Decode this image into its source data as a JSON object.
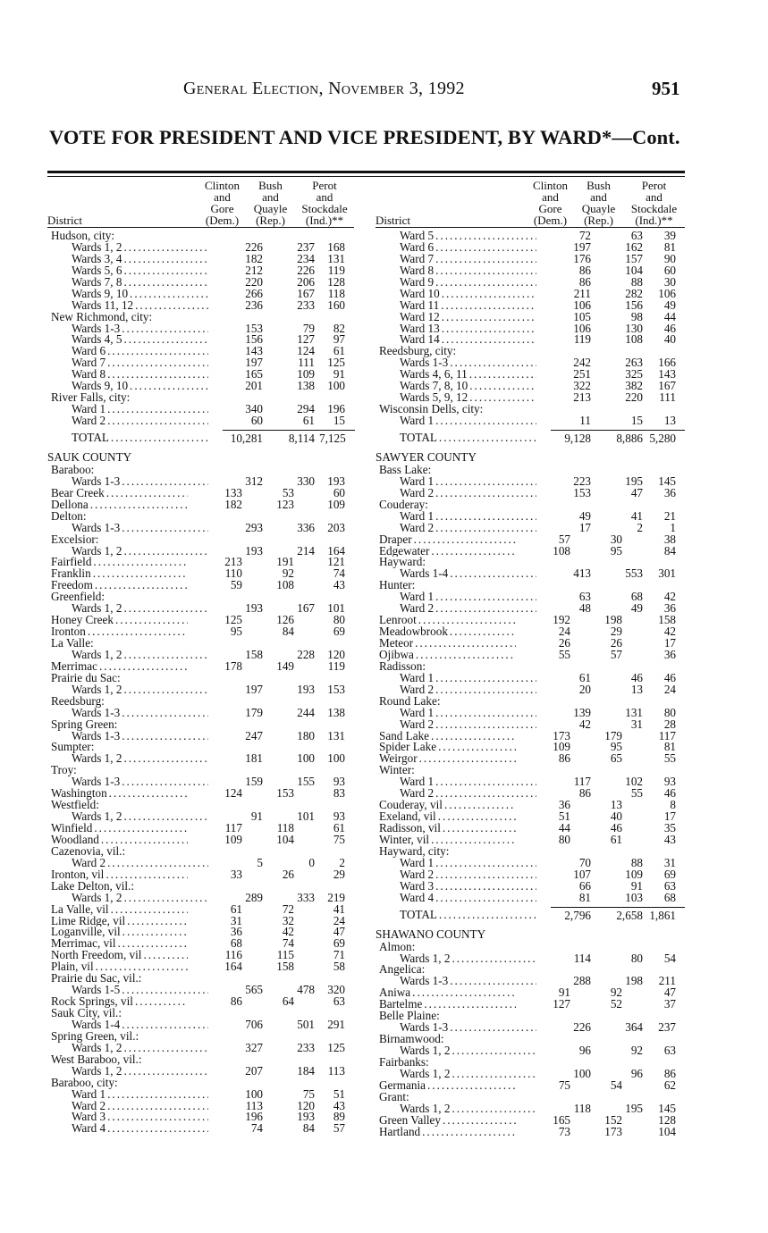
{
  "running_head": "General Election, November 3, 1992",
  "page_number": "951",
  "title": "VOTE FOR PRESIDENT AND VICE PRESIDENT, BY WARD*—Cont.",
  "columns": {
    "district": "District",
    "dem": [
      "Clinton",
      "and",
      "Gore",
      "(Dem.)"
    ],
    "rep": [
      "Bush",
      "and",
      "Quayle",
      "(Rep.)"
    ],
    "ind": [
      "Perot",
      "and",
      "Stockdale",
      "(Ind.)**"
    ]
  },
  "left_rows": [
    {
      "name": "Hudson, city:",
      "type": "p"
    },
    {
      "name": "Wards 1, 2",
      "type": "s",
      "dem": "226",
      "rep": "237",
      "ind": "168"
    },
    {
      "name": "Wards 3, 4",
      "type": "s",
      "dem": "182",
      "rep": "234",
      "ind": "131"
    },
    {
      "name": "Wards 5, 6",
      "type": "s",
      "dem": "212",
      "rep": "226",
      "ind": "119"
    },
    {
      "name": "Wards 7, 8",
      "type": "s",
      "dem": "220",
      "rep": "206",
      "ind": "128"
    },
    {
      "name": "Wards 9, 10",
      "type": "s",
      "dem": "266",
      "rep": "167",
      "ind": "118"
    },
    {
      "name": "Wards 11, 12",
      "type": "s",
      "dem": "236",
      "rep": "233",
      "ind": "160"
    },
    {
      "name": "New Richmond, city:",
      "type": "p"
    },
    {
      "name": "Wards 1-3",
      "type": "s",
      "dem": "153",
      "rep": "79",
      "ind": "82"
    },
    {
      "name": "Wards 4, 5",
      "type": "s",
      "dem": "156",
      "rep": "127",
      "ind": "97"
    },
    {
      "name": "Ward 6",
      "type": "s",
      "dem": "143",
      "rep": "124",
      "ind": "61"
    },
    {
      "name": "Ward 7",
      "type": "s",
      "dem": "197",
      "rep": "111",
      "ind": "125"
    },
    {
      "name": "Ward 8",
      "type": "s",
      "dem": "165",
      "rep": "109",
      "ind": "91"
    },
    {
      "name": "Wards 9, 10",
      "type": "s",
      "dem": "201",
      "rep": "138",
      "ind": "100"
    },
    {
      "name": "River Falls, city:",
      "type": "p"
    },
    {
      "name": "Ward 1",
      "type": "s",
      "dem": "340",
      "rep": "294",
      "ind": "196"
    },
    {
      "name": "Ward 2",
      "type": "s",
      "dem": "60",
      "rep": "61",
      "ind": "15"
    },
    {
      "name": "TOTAL",
      "type": "T",
      "dem": "10,281",
      "rep": "8,114",
      "ind": "7,125"
    },
    {
      "name": "SAUK COUNTY",
      "type": "c"
    },
    {
      "name": "Baraboo:",
      "type": "p"
    },
    {
      "name": "Wards 1-3",
      "type": "s",
      "dem": "312",
      "rep": "330",
      "ind": "193"
    },
    {
      "name": "Bear Creek",
      "type": "p",
      "dem": "133",
      "rep": "53",
      "ind": "60"
    },
    {
      "name": "Dellona",
      "type": "p",
      "dem": "182",
      "rep": "123",
      "ind": "109"
    },
    {
      "name": "Delton:",
      "type": "p"
    },
    {
      "name": "Wards 1-3",
      "type": "s",
      "dem": "293",
      "rep": "336",
      "ind": "203"
    },
    {
      "name": "Excelsior:",
      "type": "p"
    },
    {
      "name": "Wards 1, 2",
      "type": "s",
      "dem": "193",
      "rep": "214",
      "ind": "164"
    },
    {
      "name": "Fairfield",
      "type": "p",
      "dem": "213",
      "rep": "191",
      "ind": "121"
    },
    {
      "name": "Franklin",
      "type": "p",
      "dem": "110",
      "rep": "92",
      "ind": "74"
    },
    {
      "name": "Freedom",
      "type": "p",
      "dem": "59",
      "rep": "108",
      "ind": "43"
    },
    {
      "name": "Greenfield:",
      "type": "p"
    },
    {
      "name": "Wards 1, 2",
      "type": "s",
      "dem": "193",
      "rep": "167",
      "ind": "101"
    },
    {
      "name": "Honey Creek",
      "type": "p",
      "dem": "125",
      "rep": "126",
      "ind": "80"
    },
    {
      "name": "Ironton",
      "type": "p",
      "dem": "95",
      "rep": "84",
      "ind": "69"
    },
    {
      "name": "La Valle:",
      "type": "p"
    },
    {
      "name": "Wards 1, 2",
      "type": "s",
      "dem": "158",
      "rep": "228",
      "ind": "120"
    },
    {
      "name": "Merrimac",
      "type": "p",
      "dem": "178",
      "rep": "149",
      "ind": "119"
    },
    {
      "name": "Prairie du Sac:",
      "type": "p"
    },
    {
      "name": "Wards 1, 2",
      "type": "s",
      "dem": "197",
      "rep": "193",
      "ind": "153"
    },
    {
      "name": "Reedsburg:",
      "type": "p"
    },
    {
      "name": "Wards 1-3",
      "type": "s",
      "dem": "179",
      "rep": "244",
      "ind": "138"
    },
    {
      "name": "Spring Green:",
      "type": "p"
    },
    {
      "name": "Wards 1-3",
      "type": "s",
      "dem": "247",
      "rep": "180",
      "ind": "131"
    },
    {
      "name": "Sumpter:",
      "type": "p"
    },
    {
      "name": "Wards 1, 2",
      "type": "s",
      "dem": "181",
      "rep": "100",
      "ind": "100"
    },
    {
      "name": "Troy:",
      "type": "p"
    },
    {
      "name": "Wards 1-3",
      "type": "s",
      "dem": "159",
      "rep": "155",
      "ind": "93"
    },
    {
      "name": "Washington",
      "type": "p",
      "dem": "124",
      "rep": "153",
      "ind": "83"
    },
    {
      "name": "Westfield:",
      "type": "p"
    },
    {
      "name": "Wards 1, 2",
      "type": "s",
      "dem": "91",
      "rep": "101",
      "ind": "93"
    },
    {
      "name": "Winfield",
      "type": "p",
      "dem": "117",
      "rep": "118",
      "ind": "61"
    },
    {
      "name": "Woodland",
      "type": "p",
      "dem": "109",
      "rep": "104",
      "ind": "75"
    },
    {
      "name": "Cazenovia, vil.:",
      "type": "p"
    },
    {
      "name": "Ward 2",
      "type": "s",
      "dem": "5",
      "rep": "0",
      "ind": "2"
    },
    {
      "name": "Ironton, vil",
      "type": "p",
      "dem": "33",
      "rep": "26",
      "ind": "29"
    },
    {
      "name": "Lake Delton, vil.:",
      "type": "p"
    },
    {
      "name": "Wards 1, 2",
      "type": "s",
      "dem": "289",
      "rep": "333",
      "ind": "219"
    },
    {
      "name": "La Valle, vil",
      "type": "p",
      "dem": "61",
      "rep": "72",
      "ind": "41"
    },
    {
      "name": "Lime Ridge, vil",
      "type": "p",
      "dem": "31",
      "rep": "32",
      "ind": "24"
    },
    {
      "name": "Loganville, vil",
      "type": "p",
      "dem": "36",
      "rep": "42",
      "ind": "47"
    },
    {
      "name": "Merrimac, vil",
      "type": "p",
      "dem": "68",
      "rep": "74",
      "ind": "69"
    },
    {
      "name": "North Freedom, vil",
      "type": "p",
      "dem": "116",
      "rep": "115",
      "ind": "71"
    },
    {
      "name": "Plain, vil",
      "type": "p",
      "dem": "164",
      "rep": "158",
      "ind": "58"
    },
    {
      "name": "Prairie du Sac, vil.:",
      "type": "p"
    },
    {
      "name": "Wards 1-5",
      "type": "s",
      "dem": "565",
      "rep": "478",
      "ind": "320"
    },
    {
      "name": "Rock Springs, vil",
      "type": "p",
      "dem": "86",
      "rep": "64",
      "ind": "63"
    },
    {
      "name": "Sauk City, vil.:",
      "type": "p"
    },
    {
      "name": "Wards 1-4",
      "type": "s",
      "dem": "706",
      "rep": "501",
      "ind": "291"
    },
    {
      "name": "Spring Green, vil.:",
      "type": "p"
    },
    {
      "name": "Wards 1, 2",
      "type": "s",
      "dem": "327",
      "rep": "233",
      "ind": "125"
    },
    {
      "name": "West Baraboo, vil.:",
      "type": "p"
    },
    {
      "name": "Wards 1, 2",
      "type": "s",
      "dem": "207",
      "rep": "184",
      "ind": "113"
    },
    {
      "name": "Baraboo, city:",
      "type": "p"
    },
    {
      "name": "Ward 1",
      "type": "s",
      "dem": "100",
      "rep": "75",
      "ind": "51"
    },
    {
      "name": "Ward 2",
      "type": "s",
      "dem": "113",
      "rep": "120",
      "ind": "43"
    },
    {
      "name": "Ward 3",
      "type": "s",
      "dem": "196",
      "rep": "193",
      "ind": "89"
    },
    {
      "name": "Ward 4",
      "type": "s",
      "dem": "74",
      "rep": "84",
      "ind": "57"
    }
  ],
  "right_rows": [
    {
      "name": "Ward 5",
      "type": "s",
      "dem": "72",
      "rep": "63",
      "ind": "39"
    },
    {
      "name": "Ward 6",
      "type": "s",
      "dem": "197",
      "rep": "162",
      "ind": "81"
    },
    {
      "name": "Ward 7",
      "type": "s",
      "dem": "176",
      "rep": "157",
      "ind": "90"
    },
    {
      "name": "Ward 8",
      "type": "s",
      "dem": "86",
      "rep": "104",
      "ind": "60"
    },
    {
      "name": "Ward 9",
      "type": "s",
      "dem": "86",
      "rep": "88",
      "ind": "30"
    },
    {
      "name": "Ward 10",
      "type": "s",
      "dem": "211",
      "rep": "282",
      "ind": "106"
    },
    {
      "name": "Ward 11",
      "type": "s",
      "dem": "106",
      "rep": "156",
      "ind": "49"
    },
    {
      "name": "Ward 12",
      "type": "s",
      "dem": "105",
      "rep": "98",
      "ind": "44"
    },
    {
      "name": "Ward 13",
      "type": "s",
      "dem": "106",
      "rep": "130",
      "ind": "46"
    },
    {
      "name": "Ward 14",
      "type": "s",
      "dem": "119",
      "rep": "108",
      "ind": "40"
    },
    {
      "name": "Reedsburg, city:",
      "type": "p"
    },
    {
      "name": "Wards 1-3",
      "type": "s",
      "dem": "242",
      "rep": "263",
      "ind": "166"
    },
    {
      "name": "Wards 4, 6, 11",
      "type": "s",
      "dem": "251",
      "rep": "325",
      "ind": "143"
    },
    {
      "name": "Wards 7, 8, 10",
      "type": "s",
      "dem": "322",
      "rep": "382",
      "ind": "167"
    },
    {
      "name": "Wards 5, 9, 12",
      "type": "s",
      "dem": "213",
      "rep": "220",
      "ind": "111"
    },
    {
      "name": "Wisconsin Dells, city:",
      "type": "p"
    },
    {
      "name": "Ward 1",
      "type": "s",
      "dem": "11",
      "rep": "15",
      "ind": "13"
    },
    {
      "name": "TOTAL",
      "type": "T",
      "dem": "9,128",
      "rep": "8,886",
      "ind": "5,280"
    },
    {
      "name": "SAWYER COUNTY",
      "type": "c"
    },
    {
      "name": "Bass Lake:",
      "type": "p"
    },
    {
      "name": "Ward 1",
      "type": "s",
      "dem": "223",
      "rep": "195",
      "ind": "145"
    },
    {
      "name": "Ward 2",
      "type": "s",
      "dem": "153",
      "rep": "47",
      "ind": "36"
    },
    {
      "name": "Couderay:",
      "type": "p"
    },
    {
      "name": "Ward 1",
      "type": "s",
      "dem": "49",
      "rep": "41",
      "ind": "21"
    },
    {
      "name": "Ward 2",
      "type": "s",
      "dem": "17",
      "rep": "2",
      "ind": "1"
    },
    {
      "name": "Draper",
      "type": "p",
      "dem": "57",
      "rep": "30",
      "ind": "38"
    },
    {
      "name": "Edgewater",
      "type": "p",
      "dem": "108",
      "rep": "95",
      "ind": "84"
    },
    {
      "name": "Hayward:",
      "type": "p"
    },
    {
      "name": "Wards 1-4",
      "type": "s",
      "dem": "413",
      "rep": "553",
      "ind": "301"
    },
    {
      "name": "Hunter:",
      "type": "p"
    },
    {
      "name": "Ward 1",
      "type": "s",
      "dem": "63",
      "rep": "68",
      "ind": "42"
    },
    {
      "name": "Ward 2",
      "type": "s",
      "dem": "48",
      "rep": "49",
      "ind": "36"
    },
    {
      "name": "Lenroot",
      "type": "p",
      "dem": "192",
      "rep": "198",
      "ind": "158"
    },
    {
      "name": "Meadowbrook",
      "type": "p",
      "dem": "24",
      "rep": "29",
      "ind": "42"
    },
    {
      "name": "Meteor",
      "type": "p",
      "dem": "26",
      "rep": "26",
      "ind": "17"
    },
    {
      "name": "Ojibwa",
      "type": "p",
      "dem": "55",
      "rep": "57",
      "ind": "36"
    },
    {
      "name": "Radisson:",
      "type": "p"
    },
    {
      "name": "Ward 1",
      "type": "s",
      "dem": "61",
      "rep": "46",
      "ind": "46"
    },
    {
      "name": "Ward 2",
      "type": "s",
      "dem": "20",
      "rep": "13",
      "ind": "24"
    },
    {
      "name": "Round Lake:",
      "type": "p"
    },
    {
      "name": "Ward 1",
      "type": "s",
      "dem": "139",
      "rep": "131",
      "ind": "80"
    },
    {
      "name": "Ward 2",
      "type": "s",
      "dem": "42",
      "rep": "31",
      "ind": "28"
    },
    {
      "name": "Sand Lake",
      "type": "p",
      "dem": "173",
      "rep": "179",
      "ind": "117"
    },
    {
      "name": "Spider Lake",
      "type": "p",
      "dem": "109",
      "rep": "95",
      "ind": "81"
    },
    {
      "name": "Weirgor",
      "type": "p",
      "dem": "86",
      "rep": "65",
      "ind": "55"
    },
    {
      "name": "Winter:",
      "type": "p"
    },
    {
      "name": "Ward 1",
      "type": "s",
      "dem": "117",
      "rep": "102",
      "ind": "93"
    },
    {
      "name": "Ward 2",
      "type": "s",
      "dem": "86",
      "rep": "55",
      "ind": "46"
    },
    {
      "name": "Couderay, vil",
      "type": "p",
      "dem": "36",
      "rep": "13",
      "ind": "8"
    },
    {
      "name": "Exeland, vil",
      "type": "p",
      "dem": "51",
      "rep": "40",
      "ind": "17"
    },
    {
      "name": "Radisson, vil",
      "type": "p",
      "dem": "44",
      "rep": "46",
      "ind": "35"
    },
    {
      "name": "Winter, vil",
      "type": "p",
      "dem": "80",
      "rep": "61",
      "ind": "43"
    },
    {
      "name": "Hayward, city:",
      "type": "p"
    },
    {
      "name": "Ward 1",
      "type": "s",
      "dem": "70",
      "rep": "88",
      "ind": "31"
    },
    {
      "name": "Ward 2",
      "type": "s",
      "dem": "107",
      "rep": "109",
      "ind": "69"
    },
    {
      "name": "Ward 3",
      "type": "s",
      "dem": "66",
      "rep": "91",
      "ind": "63"
    },
    {
      "name": "Ward 4",
      "type": "s",
      "dem": "81",
      "rep": "103",
      "ind": "68"
    },
    {
      "name": "TOTAL",
      "type": "T",
      "dem": "2,796",
      "rep": "2,658",
      "ind": "1,861"
    },
    {
      "name": "SHAWANO COUNTY",
      "type": "c"
    },
    {
      "name": "Almon:",
      "type": "p"
    },
    {
      "name": "Wards 1, 2",
      "type": "s",
      "dem": "114",
      "rep": "80",
      "ind": "54"
    },
    {
      "name": "Angelica:",
      "type": "p"
    },
    {
      "name": "Wards 1-3",
      "type": "s",
      "dem": "288",
      "rep": "198",
      "ind": "211"
    },
    {
      "name": "Aniwa",
      "type": "p",
      "dem": "91",
      "rep": "92",
      "ind": "47"
    },
    {
      "name": "Bartelme",
      "type": "p",
      "dem": "127",
      "rep": "52",
      "ind": "37"
    },
    {
      "name": "Belle Plaine:",
      "type": "p"
    },
    {
      "name": "Wards 1-3",
      "type": "s",
      "dem": "226",
      "rep": "364",
      "ind": "237"
    },
    {
      "name": "Birnamwood:",
      "type": "p"
    },
    {
      "name": "Wards 1, 2",
      "type": "s",
      "dem": "96",
      "rep": "92",
      "ind": "63"
    },
    {
      "name": "Fairbanks:",
      "type": "p"
    },
    {
      "name": "Wards 1, 2",
      "type": "s",
      "dem": "100",
      "rep": "96",
      "ind": "86"
    },
    {
      "name": "Germania",
      "type": "p",
      "dem": "75",
      "rep": "54",
      "ind": "62"
    },
    {
      "name": "Grant:",
      "type": "p"
    },
    {
      "name": "Wards 1, 2",
      "type": "s",
      "dem": "118",
      "rep": "195",
      "ind": "145"
    },
    {
      "name": "Green Valley",
      "type": "p",
      "dem": "165",
      "rep": "152",
      "ind": "128"
    },
    {
      "name": "Hartland",
      "type": "p",
      "dem": "73",
      "rep": "173",
      "ind": "104"
    }
  ]
}
